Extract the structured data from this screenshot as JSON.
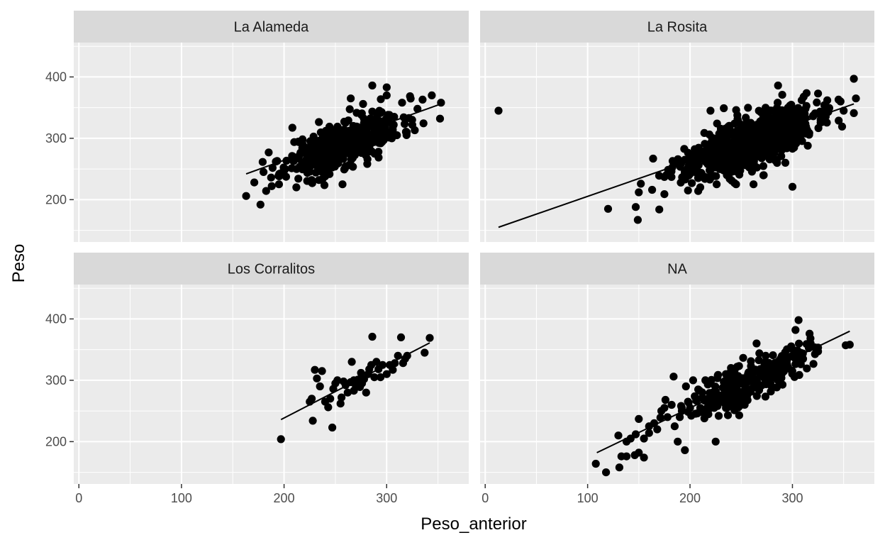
{
  "chart_data": {
    "type": "scatter",
    "xlabel": "Peso_anterior",
    "ylabel": "Peso",
    "x_ticks": [
      0,
      100,
      200,
      300
    ],
    "y_ticks": [
      200,
      300,
      400
    ],
    "xlim": [
      -5,
      380
    ],
    "ylim": [
      131,
      456
    ],
    "grid": true,
    "background": "#ebebeb",
    "strip_color": "#d9d9d9",
    "point_color": "#000000",
    "panels": [
      {
        "name": "La Alameda",
        "fit": {
          "x": [
            163,
            353
          ],
          "y": [
            242,
            356
          ]
        },
        "cluster": {
          "n": 420,
          "x_mean": 258,
          "x_sd": 28,
          "y_mean": 292,
          "slope": 0.6,
          "y_sd": 19,
          "seed": 11
        },
        "points": [
          [
            163,
            206
          ],
          [
            177,
            192
          ],
          [
            171,
            228
          ],
          [
            188,
            222
          ],
          [
            195,
            225
          ],
          [
            212,
            220
          ],
          [
            180,
            245
          ],
          [
            192,
            262
          ],
          [
            185,
            277
          ],
          [
            201,
            250
          ],
          [
            215,
            272
          ],
          [
            227,
            232
          ],
          [
            234,
            232
          ],
          [
            240,
            238
          ],
          [
            257,
            225
          ],
          [
            265,
            365
          ],
          [
            277,
            356
          ],
          [
            286,
            386
          ],
          [
            300,
            383
          ],
          [
            300,
            370
          ],
          [
            315,
            358
          ],
          [
            335,
            363
          ],
          [
            344,
            370
          ],
          [
            353,
            358
          ],
          [
            352,
            332
          ],
          [
            330,
            348
          ],
          [
            325,
            322
          ],
          [
            310,
            305
          ],
          [
            292,
            278
          ],
          [
            305,
            300
          ]
        ]
      },
      {
        "name": "La Rosita",
        "fit": {
          "x": [
            13,
            360
          ],
          "y": [
            155,
            356
          ]
        },
        "cluster": {
          "n": 900,
          "x_mean": 258,
          "x_sd": 30,
          "y_mean": 292,
          "slope": 0.58,
          "y_sd": 19,
          "seed": 23
        },
        "points": [
          [
            13,
            345
          ],
          [
            120,
            185
          ],
          [
            147,
            188
          ],
          [
            149,
            167
          ],
          [
            150,
            212
          ],
          [
            152,
            226
          ],
          [
            163,
            216
          ],
          [
            170,
            184
          ],
          [
            175,
            209
          ],
          [
            175,
            237
          ],
          [
            180,
            247
          ],
          [
            183,
            263
          ],
          [
            195,
            265
          ],
          [
            198,
            215
          ],
          [
            200,
            242
          ],
          [
            208,
            214
          ],
          [
            210,
            220
          ],
          [
            220,
            345
          ],
          [
            233,
            349
          ],
          [
            245,
            225
          ],
          [
            262,
            225
          ],
          [
            272,
            240
          ],
          [
            286,
            386
          ],
          [
            300,
            221
          ],
          [
            309,
            362
          ],
          [
            325,
            373
          ],
          [
            334,
            362
          ],
          [
            345,
            363
          ],
          [
            347,
            360
          ],
          [
            360,
            397
          ],
          [
            360,
            341
          ],
          [
            362,
            365
          ],
          [
            350,
            345
          ],
          [
            335,
            343
          ],
          [
            300,
            283
          ],
          [
            315,
            288
          ],
          [
            285,
            260
          ]
        ]
      },
      {
        "name": "Los Corralitos",
        "fit": {
          "x": [
            197,
            342
          ],
          "y": [
            236,
            361
          ]
        },
        "cluster": {
          "n": 0,
          "x_mean": 0,
          "x_sd": 0,
          "y_mean": 0,
          "slope": 0,
          "y_sd": 0,
          "seed": 1
        },
        "points": [
          [
            197,
            204
          ],
          [
            225,
            265
          ],
          [
            227,
            270
          ],
          [
            228,
            234
          ],
          [
            230,
            317
          ],
          [
            232,
            303
          ],
          [
            237,
            315
          ],
          [
            235,
            290
          ],
          [
            240,
            265
          ],
          [
            243,
            256
          ],
          [
            245,
            270
          ],
          [
            247,
            223
          ],
          [
            248,
            286
          ],
          [
            250,
            295
          ],
          [
            252,
            300
          ],
          [
            255,
            262
          ],
          [
            256,
            272
          ],
          [
            258,
            298
          ],
          [
            260,
            292
          ],
          [
            262,
            280
          ],
          [
            265,
            297
          ],
          [
            266,
            330
          ],
          [
            268,
            300
          ],
          [
            270,
            290
          ],
          [
            272,
            301
          ],
          [
            274,
            289
          ],
          [
            276,
            295
          ],
          [
            278,
            302
          ],
          [
            280,
            280
          ],
          [
            282,
            310
          ],
          [
            283,
            318
          ],
          [
            285,
            325
          ],
          [
            286,
            371
          ],
          [
            288,
            305
          ],
          [
            290,
            330
          ],
          [
            292,
            318
          ],
          [
            294,
            305
          ],
          [
            296,
            325
          ],
          [
            300,
            310
          ],
          [
            303,
            325
          ],
          [
            306,
            317
          ],
          [
            308,
            328
          ],
          [
            311,
            340
          ],
          [
            314,
            370
          ],
          [
            316,
            328
          ],
          [
            318,
            335
          ],
          [
            320,
            340
          ],
          [
            337,
            345
          ],
          [
            342,
            369
          ],
          [
            268,
            283
          ],
          [
            275,
            312
          ]
        ]
      },
      {
        "name": "NA",
        "fit": {
          "x": [
            109,
            356
          ],
          "y": [
            182,
            380
          ]
        },
        "cluster": {
          "n": 260,
          "x_mean": 258,
          "x_sd": 28,
          "y_mean": 300,
          "slope": 0.78,
          "y_sd": 17,
          "seed": 37
        },
        "points": [
          [
            108,
            164
          ],
          [
            118,
            150
          ],
          [
            131,
            158
          ],
          [
            133,
            176
          ],
          [
            138,
            176
          ],
          [
            146,
            178
          ],
          [
            150,
            182
          ],
          [
            155,
            174
          ],
          [
            130,
            210
          ],
          [
            138,
            200
          ],
          [
            142,
            205
          ],
          [
            147,
            212
          ],
          [
            150,
            237
          ],
          [
            155,
            205
          ],
          [
            160,
            225
          ],
          [
            165,
            230
          ],
          [
            168,
            220
          ],
          [
            172,
            250
          ],
          [
            175,
            255
          ],
          [
            178,
            240
          ],
          [
            182,
            260
          ],
          [
            184,
            306
          ],
          [
            188,
            200
          ],
          [
            190,
            240
          ],
          [
            192,
            250
          ],
          [
            195,
            186
          ],
          [
            198,
            265
          ],
          [
            200,
            255
          ],
          [
            203,
            300
          ],
          [
            206,
            270
          ],
          [
            208,
            285
          ],
          [
            210,
            255
          ],
          [
            212,
            270
          ],
          [
            215,
            300
          ],
          [
            218,
            260
          ],
          [
            220,
            295
          ],
          [
            222,
            280
          ],
          [
            225,
            200
          ],
          [
            228,
            242
          ],
          [
            230,
            275
          ],
          [
            232,
            288
          ],
          [
            235,
            310
          ],
          [
            238,
            300
          ],
          [
            240,
            320
          ],
          [
            242,
            305
          ],
          [
            245,
            295
          ],
          [
            248,
            243
          ],
          [
            250,
            260
          ],
          [
            265,
            360
          ],
          [
            303,
            382
          ],
          [
            306,
            398
          ],
          [
            352,
            357
          ],
          [
            356,
            358
          ],
          [
            325,
            347
          ],
          [
            160,
            214
          ],
          [
            185,
            225
          ],
          [
            176,
            268
          ],
          [
            214,
            238
          ],
          [
            234,
            262
          ],
          [
            196,
            290
          ]
        ]
      }
    ]
  }
}
